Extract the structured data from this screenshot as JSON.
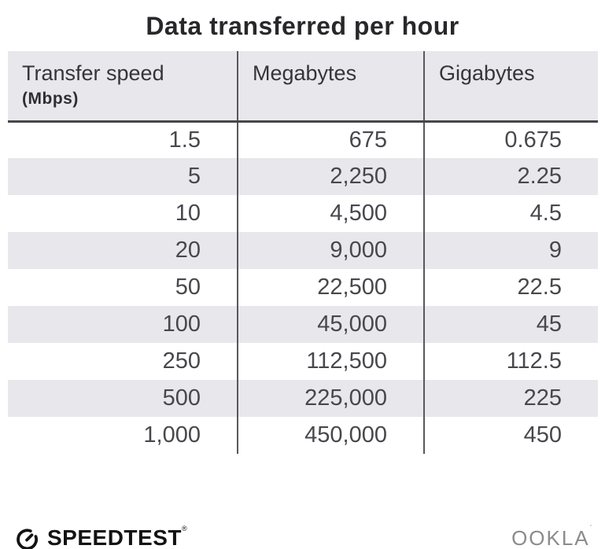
{
  "title": "Data transferred per hour",
  "table": {
    "columns": [
      {
        "label": "Transfer speed",
        "sublabel": "(Mbps)"
      },
      {
        "label": "Megabytes"
      },
      {
        "label": "Gigabytes"
      }
    ],
    "rows": [
      [
        "1.5",
        "675",
        "0.675"
      ],
      [
        "5",
        "2,250",
        "2.25"
      ],
      [
        "10",
        "4,500",
        "4.5"
      ],
      [
        "20",
        "9,000",
        "9"
      ],
      [
        "50",
        "22,500",
        "22.5"
      ],
      [
        "100",
        "45,000",
        "45"
      ],
      [
        "250",
        "112,500",
        "112.5"
      ],
      [
        "500",
        "225,000",
        "225"
      ],
      [
        "1,000",
        "450,000",
        "450"
      ]
    ]
  },
  "chart_data": {
    "type": "table",
    "title": "Data transferred per hour",
    "columns": [
      "Transfer speed (Mbps)",
      "Megabytes",
      "Gigabytes"
    ],
    "rows": [
      [
        1.5,
        675,
        0.675
      ],
      [
        5,
        2250,
        2.25
      ],
      [
        10,
        4500,
        4.5
      ],
      [
        20,
        9000,
        9
      ],
      [
        50,
        22500,
        22.5
      ],
      [
        100,
        45000,
        45
      ],
      [
        250,
        112500,
        112.5
      ],
      [
        500,
        225000,
        225
      ],
      [
        1000,
        450000,
        450
      ]
    ]
  },
  "footer": {
    "speedtest_label": "SPEEDTEST",
    "speedtest_trademark": "®",
    "ookla_label": "OOKLA",
    "ookla_trademark": "´"
  },
  "colors": {
    "band_bg": "#e8e8ec",
    "header_rule": "#47474a",
    "column_divider": "#58585c",
    "body_text": "#48484c",
    "title_text": "#28282b",
    "ookla_gray": "#8b8b8e",
    "speedtest_black": "#131313"
  }
}
